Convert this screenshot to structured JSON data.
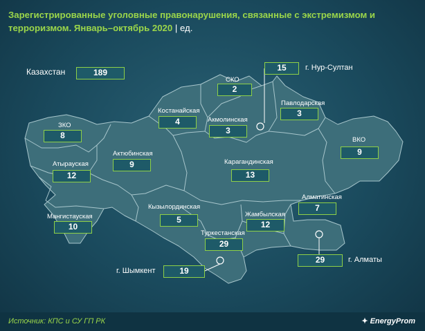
{
  "title": "Зарегистрированные уголовные правонарушения, связанные с экстремизмом и терроризмом. Январь–октябрь 2020",
  "title_sep": "|",
  "unit": "ед.",
  "country": {
    "label": "Казахстан",
    "value": "189"
  },
  "regions": {
    "sko": {
      "label": "СКО",
      "value": "2"
    },
    "pavlodar": {
      "label": "Павлодарская",
      "value": "3"
    },
    "kostanay": {
      "label": "Костанайская",
      "value": "4"
    },
    "akmola": {
      "label": "Акмолинская",
      "value": "3"
    },
    "zko": {
      "label": "ЗКО",
      "value": "8"
    },
    "aktobe": {
      "label": "Актюбинская",
      "value": "9"
    },
    "vko": {
      "label": "ВКО",
      "value": "9"
    },
    "atyrau": {
      "label": "Атырауская",
      "value": "12"
    },
    "karaganda": {
      "label": "Карагандинская",
      "value": "13"
    },
    "mangistau": {
      "label": "Мангистауская",
      "value": "10"
    },
    "kyzylorda": {
      "label": "Кызылординская",
      "value": "5"
    },
    "almaty_region": {
      "label": "Алматинская",
      "value": "7"
    },
    "zhambyl": {
      "label": "Жамбылская",
      "value": "12"
    },
    "turkestan": {
      "label": "Туркестанская",
      "value": "29"
    }
  },
  "cities": {
    "nur_sultan": {
      "label": "г. Нур-Султан",
      "value": "15"
    },
    "almaty": {
      "label": "г. Алматы",
      "value": "29"
    },
    "shymkent": {
      "label": "г. Шымкент",
      "value": "19"
    }
  },
  "source": "Источник: КПС и СУ ГП РК",
  "brand": "EnergyProm",
  "colors": {
    "accent": "#9bd64a",
    "box_fill": "#1e5a68",
    "background": "#1a4a5d"
  }
}
